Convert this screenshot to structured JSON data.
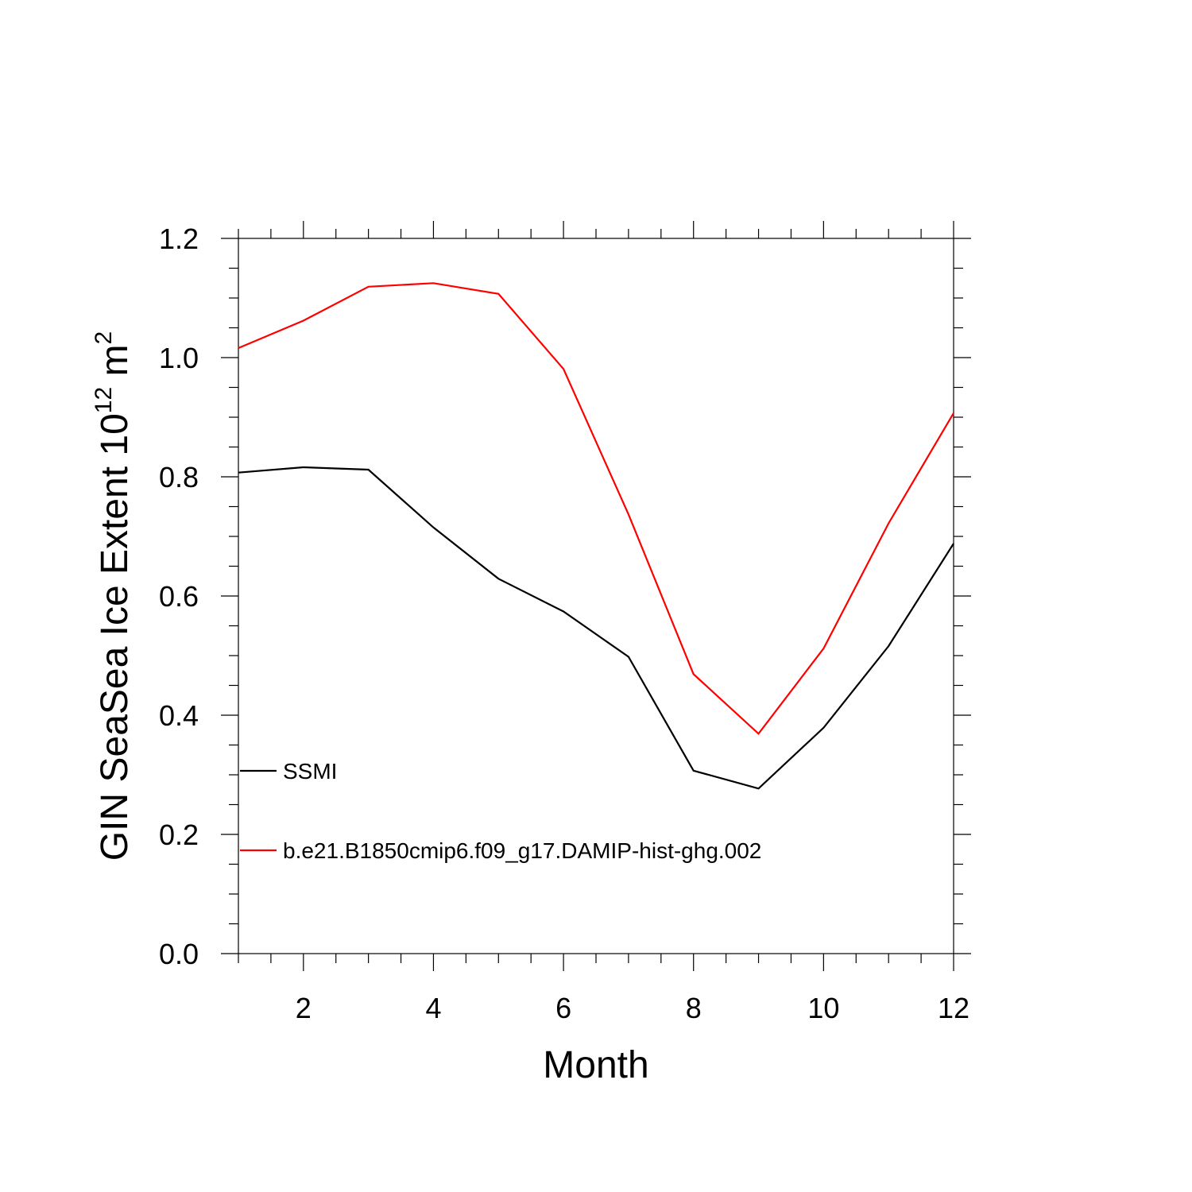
{
  "chart_data": {
    "type": "line",
    "title": "",
    "xlabel": "Month",
    "ylabel": {
      "text": "GIN SeaSea Ice Extent 10",
      "exponent": "12",
      "unit": " m",
      "unit_exponent": "2"
    },
    "xlim": [
      1,
      12
    ],
    "ylim": [
      0,
      1.2
    ],
    "xticks": [
      2,
      4,
      6,
      8,
      10,
      12
    ],
    "yticks": [
      "0.0",
      "0.2",
      "0.4",
      "0.6",
      "0.8",
      "1.0",
      "1.2"
    ],
    "grid": false,
    "legend_position": "bottom-left",
    "x": [
      1,
      2,
      3,
      4,
      5,
      6,
      7,
      8,
      9,
      10,
      11,
      12
    ],
    "series": [
      {
        "name": "SSMI",
        "color": "#000000",
        "values": [
          0.807,
          0.816,
          0.812,
          0.715,
          0.629,
          0.574,
          0.498,
          0.307,
          0.277,
          0.379,
          0.516,
          0.688
        ]
      },
      {
        "name": "b.e21.B1850cmip6.f09_g17.DAMIP-hist-ghg.002",
        "color": "#ff0000",
        "values": [
          1.016,
          1.062,
          1.119,
          1.125,
          1.107,
          0.981,
          0.737,
          0.469,
          0.369,
          0.512,
          0.722,
          0.907
        ]
      }
    ]
  }
}
